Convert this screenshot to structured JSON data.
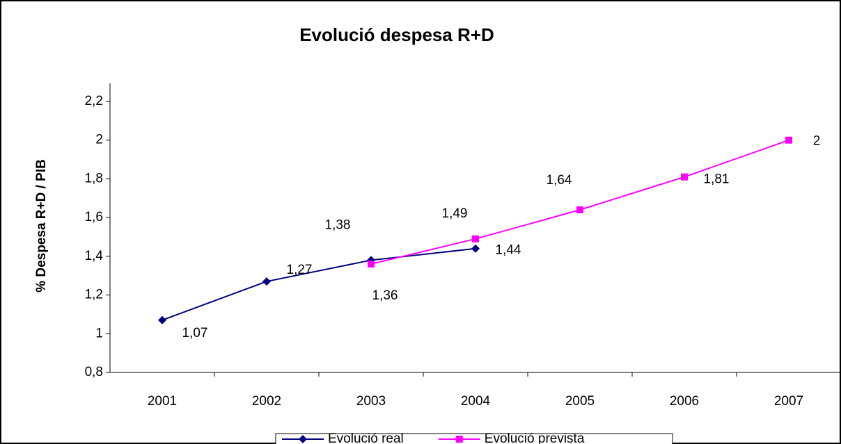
{
  "chart_data": {
    "type": "line",
    "title": "Evolució despesa R+D",
    "y_label": "% Despesa R+D / PIB",
    "categories": [
      "2001",
      "2002",
      "2003",
      "2004",
      "2005",
      "2006",
      "2007"
    ],
    "series": [
      {
        "name": "Evolució real",
        "color": "#000080",
        "marker": "diamond",
        "values": [
          1.07,
          1.27,
          1.38,
          1.44,
          null,
          null,
          null
        ],
        "value_labels": [
          "1,07",
          "1,27",
          "1,38",
          "1,44",
          null,
          null,
          null
        ]
      },
      {
        "name": "Evolució prevista",
        "color": "#ff00ff",
        "marker": "square",
        "values": [
          null,
          null,
          1.36,
          1.49,
          1.64,
          1.81,
          2
        ],
        "value_labels": [
          null,
          null,
          "1,36",
          "1,49",
          "1,64",
          "1,81",
          "2"
        ]
      }
    ],
    "ylim": [
      0.8,
      2.2
    ],
    "yticks": [
      {
        "value": 0.8,
        "label": "0,8"
      },
      1,
      {
        "value": 1.2,
        "label": "1,2"
      },
      {
        "value": 1.4,
        "label": "1,4"
      },
      {
        "value": 1.6,
        "label": "1,6"
      },
      {
        "value": 1.8,
        "label": "1,8"
      },
      2,
      {
        "value": 2.2,
        "label": "2,2"
      }
    ],
    "grid": false,
    "legend": "bottom"
  }
}
